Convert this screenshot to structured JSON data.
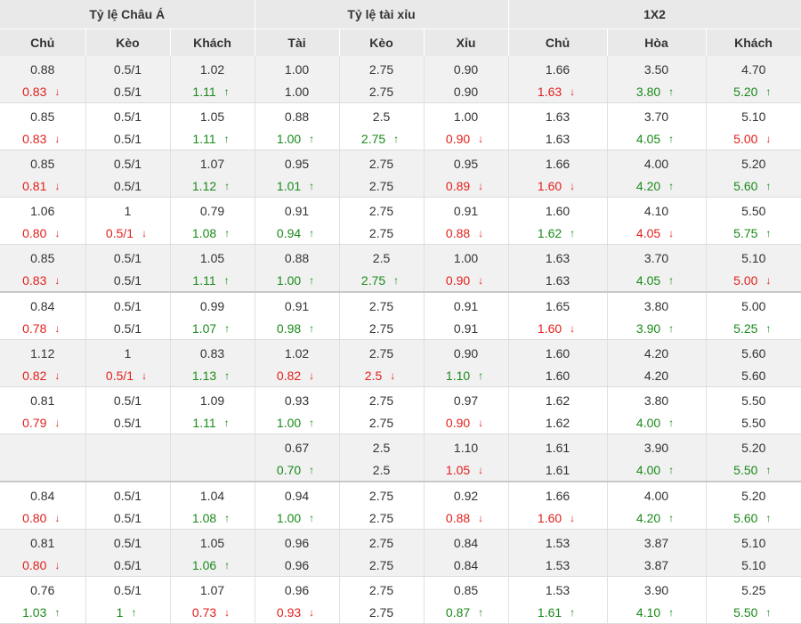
{
  "headers": {
    "groups": [
      "Tỷ lệ Châu Á",
      "Tỷ lệ tài xỉu",
      "1X2"
    ],
    "columns": [
      "Chủ",
      "Kèo",
      "Khách",
      "Tài",
      "Kèo",
      "Xỉu",
      "Chủ",
      "Hòa",
      "Khách"
    ]
  },
  "arrow_up": "↑",
  "arrow_down": "↓",
  "colors": {
    "up": "#1a8a1a",
    "down": "#e0201c",
    "header_bg": "#e9e9e9",
    "row_alt": "#f1f1f1"
  },
  "rows": [
    {
      "open": [
        "0.88",
        "0.5/1",
        "1.02",
        "1.00",
        "2.75",
        "0.90",
        "1.66",
        "3.50",
        "4.70"
      ],
      "live": [
        [
          "0.83",
          "d"
        ],
        [
          "0.5/1",
          ""
        ],
        [
          "1.11",
          "u"
        ],
        [
          "1.00",
          ""
        ],
        [
          "2.75",
          ""
        ],
        [
          "0.90",
          ""
        ],
        [
          "1.63",
          "d"
        ],
        [
          "3.80",
          "u"
        ],
        [
          "5.20",
          "u"
        ]
      ]
    },
    {
      "open": [
        "0.85",
        "0.5/1",
        "1.05",
        "0.88",
        "2.5",
        "1.00",
        "1.63",
        "3.70",
        "5.10"
      ],
      "live": [
        [
          "0.83",
          "d"
        ],
        [
          "0.5/1",
          ""
        ],
        [
          "1.11",
          "u"
        ],
        [
          "1.00",
          "u"
        ],
        [
          "2.75",
          "u"
        ],
        [
          "0.90",
          "d"
        ],
        [
          "1.63",
          ""
        ],
        [
          "4.05",
          "u"
        ],
        [
          "5.00",
          "d"
        ]
      ]
    },
    {
      "open": [
        "0.85",
        "0.5/1",
        "1.07",
        "0.95",
        "2.75",
        "0.95",
        "1.66",
        "4.00",
        "5.20"
      ],
      "live": [
        [
          "0.81",
          "d"
        ],
        [
          "0.5/1",
          ""
        ],
        [
          "1.12",
          "u"
        ],
        [
          "1.01",
          "u"
        ],
        [
          "2.75",
          ""
        ],
        [
          "0.89",
          "d"
        ],
        [
          "1.60",
          "d"
        ],
        [
          "4.20",
          "u"
        ],
        [
          "5.60",
          "u"
        ]
      ]
    },
    {
      "open": [
        "1.06",
        "1",
        "0.79",
        "0.91",
        "2.75",
        "0.91",
        "1.60",
        "4.10",
        "5.50"
      ],
      "live": [
        [
          "0.80",
          "d"
        ],
        [
          "0.5/1",
          "d"
        ],
        [
          "1.08",
          "u"
        ],
        [
          "0.94",
          "u"
        ],
        [
          "2.75",
          ""
        ],
        [
          "0.88",
          "d"
        ],
        [
          "1.62",
          "u"
        ],
        [
          "4.05",
          "d"
        ],
        [
          "5.75",
          "u"
        ]
      ]
    },
    {
      "open": [
        "0.85",
        "0.5/1",
        "1.05",
        "0.88",
        "2.5",
        "1.00",
        "1.63",
        "3.70",
        "5.10"
      ],
      "live": [
        [
          "0.83",
          "d"
        ],
        [
          "0.5/1",
          ""
        ],
        [
          "1.11",
          "u"
        ],
        [
          "1.00",
          "u"
        ],
        [
          "2.75",
          "u"
        ],
        [
          "0.90",
          "d"
        ],
        [
          "1.63",
          ""
        ],
        [
          "4.05",
          "u"
        ],
        [
          "5.00",
          "d"
        ]
      ]
    },
    {
      "open": [
        "0.84",
        "0.5/1",
        "0.99",
        "0.91",
        "2.75",
        "0.91",
        "1.65",
        "3.80",
        "5.00"
      ],
      "live": [
        [
          "0.78",
          "d"
        ],
        [
          "0.5/1",
          ""
        ],
        [
          "1.07",
          "u"
        ],
        [
          "0.98",
          "u"
        ],
        [
          "2.75",
          ""
        ],
        [
          "0.91",
          ""
        ],
        [
          "1.60",
          "d"
        ],
        [
          "3.90",
          "u"
        ],
        [
          "5.25",
          "u"
        ]
      ]
    },
    {
      "open": [
        "1.12",
        "1",
        "0.83",
        "1.02",
        "2.75",
        "0.90",
        "1.60",
        "4.20",
        "5.60"
      ],
      "live": [
        [
          "0.82",
          "d"
        ],
        [
          "0.5/1",
          "d"
        ],
        [
          "1.13",
          "u"
        ],
        [
          "0.82",
          "d"
        ],
        [
          "2.5",
          "d"
        ],
        [
          "1.10",
          "u"
        ],
        [
          "1.60",
          ""
        ],
        [
          "4.20",
          ""
        ],
        [
          "5.60",
          ""
        ]
      ]
    },
    {
      "open": [
        "0.81",
        "0.5/1",
        "1.09",
        "0.93",
        "2.75",
        "0.97",
        "1.62",
        "3.80",
        "5.50"
      ],
      "live": [
        [
          "0.79",
          "d"
        ],
        [
          "0.5/1",
          ""
        ],
        [
          "1.11",
          "u"
        ],
        [
          "1.00",
          "u"
        ],
        [
          "2.75",
          ""
        ],
        [
          "0.90",
          "d"
        ],
        [
          "1.62",
          ""
        ],
        [
          "4.00",
          "u"
        ],
        [
          "5.50",
          ""
        ]
      ]
    },
    {
      "open": [
        "",
        "",
        "",
        "0.67",
        "2.5",
        "1.10",
        "1.61",
        "3.90",
        "5.20"
      ],
      "live": [
        [
          "",
          ""
        ],
        [
          "",
          ""
        ],
        [
          "",
          ""
        ],
        [
          "0.70",
          "u"
        ],
        [
          "2.5",
          ""
        ],
        [
          "1.05",
          "d"
        ],
        [
          "1.61",
          ""
        ],
        [
          "4.00",
          "u"
        ],
        [
          "5.50",
          "u"
        ]
      ]
    },
    {
      "open": [
        "0.84",
        "0.5/1",
        "1.04",
        "0.94",
        "2.75",
        "0.92",
        "1.66",
        "4.00",
        "5.20"
      ],
      "live": [
        [
          "0.80",
          "d"
        ],
        [
          "0.5/1",
          ""
        ],
        [
          "1.08",
          "u"
        ],
        [
          "1.00",
          "u"
        ],
        [
          "2.75",
          ""
        ],
        [
          "0.88",
          "d"
        ],
        [
          "1.60",
          "d"
        ],
        [
          "4.20",
          "u"
        ],
        [
          "5.60",
          "u"
        ]
      ]
    },
    {
      "open": [
        "0.81",
        "0.5/1",
        "1.05",
        "0.96",
        "2.75",
        "0.84",
        "1.53",
        "3.87",
        "5.10"
      ],
      "live": [
        [
          "0.80",
          "d"
        ],
        [
          "0.5/1",
          ""
        ],
        [
          "1.06",
          "u"
        ],
        [
          "0.96",
          ""
        ],
        [
          "2.75",
          ""
        ],
        [
          "0.84",
          ""
        ],
        [
          "1.53",
          ""
        ],
        [
          "3.87",
          ""
        ],
        [
          "5.10",
          ""
        ]
      ]
    },
    {
      "open": [
        "0.76",
        "0.5/1",
        "1.07",
        "0.96",
        "2.75",
        "0.85",
        "1.53",
        "3.90",
        "5.25"
      ],
      "live": [
        [
          "1.03",
          "u"
        ],
        [
          "1",
          "u"
        ],
        [
          "0.73",
          "d"
        ],
        [
          "0.93",
          "d"
        ],
        [
          "2.75",
          ""
        ],
        [
          "0.87",
          "u"
        ],
        [
          "1.61",
          "u"
        ],
        [
          "4.10",
          "u"
        ],
        [
          "5.50",
          "u"
        ]
      ]
    }
  ]
}
